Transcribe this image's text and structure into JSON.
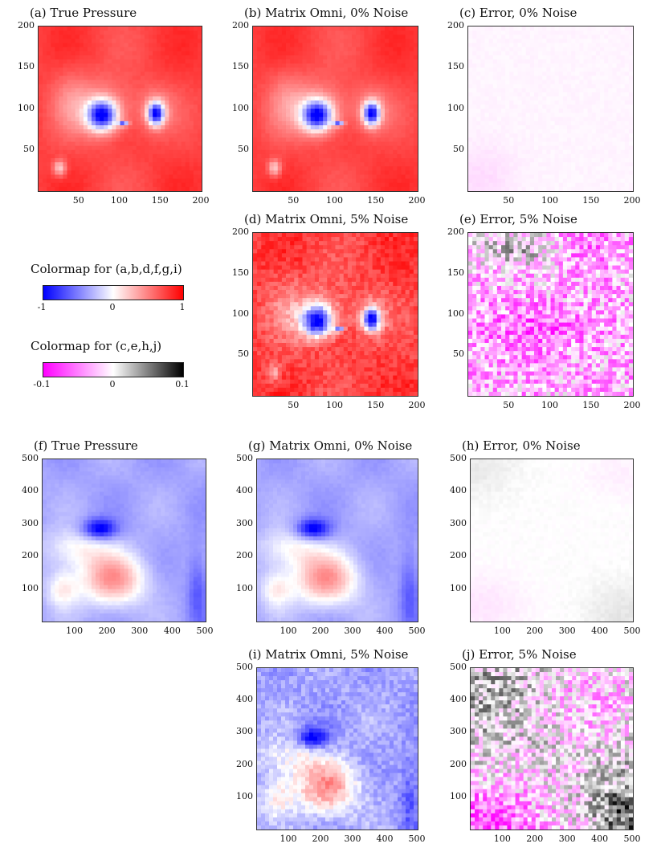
{
  "colorbars": {
    "main": {
      "label": "Colormap for (a,b,d,f,g,i)",
      "ticks": [
        "-1",
        "0",
        "1"
      ],
      "colors": [
        "#0000ff",
        "#ffffff",
        "#ff0000"
      ]
    },
    "error": {
      "label": "Colormap for (c,e,h,j)",
      "ticks": [
        "-0.1",
        "0",
        "0.1"
      ],
      "colors": [
        "#ff00ff",
        "#ffffff",
        "#000000"
      ]
    }
  },
  "chart_data": [
    {
      "id": "a",
      "type": "heatmap",
      "title": "(a) True Pressure",
      "xticks": [
        "50",
        "100",
        "150",
        "200"
      ],
      "yticks": [
        "200",
        "150",
        "100",
        "50"
      ],
      "xlim": [
        0,
        200
      ],
      "ylim": [
        0,
        200
      ],
      "colormap": "main",
      "pattern": "pressure200",
      "noise": 0,
      "dominant_value": 0.8
    },
    {
      "id": "b",
      "type": "heatmap",
      "title": "(b) Matrix Omni, 0% Noise",
      "xticks": [
        "50",
        "100",
        "150",
        "200"
      ],
      "yticks": [
        "200",
        "150",
        "100",
        "50"
      ],
      "xlim": [
        0,
        200
      ],
      "ylim": [
        0,
        200
      ],
      "colormap": "main",
      "pattern": "pressure200",
      "noise": 0,
      "dominant_value": 0.8
    },
    {
      "id": "c",
      "type": "heatmap",
      "title": "(c) Error, 0% Noise",
      "xticks": [
        "50",
        "100",
        "150",
        "200"
      ],
      "yticks": [
        "200",
        "150",
        "100",
        "50"
      ],
      "xlim": [
        0,
        200
      ],
      "ylim": [
        0,
        200
      ],
      "colormap": "error",
      "pattern": "error200clean",
      "noise": 0,
      "dominant_value": -0.005
    },
    {
      "id": "d",
      "type": "heatmap",
      "title": "(d) Matrix Omni, 5% Noise",
      "xticks": [
        "50",
        "100",
        "150",
        "200"
      ],
      "yticks": [
        "200",
        "150",
        "100",
        "50"
      ],
      "xlim": [
        0,
        200
      ],
      "ylim": [
        0,
        200
      ],
      "colormap": "main",
      "pattern": "pressure200",
      "noise": 0.05,
      "dominant_value": 0.8
    },
    {
      "id": "e",
      "type": "heatmap",
      "title": "(e) Error, 5% Noise",
      "xticks": [
        "50",
        "100",
        "150",
        "200"
      ],
      "yticks": [
        "200",
        "150",
        "100",
        "50"
      ],
      "xlim": [
        0,
        200
      ],
      "ylim": [
        0,
        200
      ],
      "colormap": "error",
      "pattern": "error200noisy",
      "noise": 0.05,
      "dominant_value": -0.05
    },
    {
      "id": "f",
      "type": "heatmap",
      "title": "(f) True Pressure",
      "xticks": [
        "100",
        "200",
        "300",
        "400",
        "500"
      ],
      "yticks": [
        "500",
        "400",
        "300",
        "200",
        "100"
      ],
      "xlim": [
        0,
        500
      ],
      "ylim": [
        0,
        500
      ],
      "colormap": "main",
      "pattern": "pressure500",
      "noise": 0,
      "dominant_value": -0.3
    },
    {
      "id": "g",
      "type": "heatmap",
      "title": "(g) Matrix Omni, 0% Noise",
      "xticks": [
        "100",
        "200",
        "300",
        "400",
        "500"
      ],
      "yticks": [
        "500",
        "400",
        "300",
        "200",
        "100"
      ],
      "xlim": [
        0,
        500
      ],
      "ylim": [
        0,
        500
      ],
      "colormap": "main",
      "pattern": "pressure500",
      "noise": 0,
      "dominant_value": -0.3
    },
    {
      "id": "h",
      "type": "heatmap",
      "title": "(h) Error, 0% Noise",
      "xticks": [
        "100",
        "200",
        "300",
        "400",
        "500"
      ],
      "yticks": [
        "500",
        "400",
        "300",
        "200",
        "100"
      ],
      "xlim": [
        0,
        500
      ],
      "ylim": [
        0,
        500
      ],
      "colormap": "error",
      "pattern": "error500clean",
      "noise": 0,
      "dominant_value": 0.0
    },
    {
      "id": "i",
      "type": "heatmap",
      "title": "(i) Matrix Omni, 5% Noise",
      "xticks": [
        "100",
        "200",
        "300",
        "400",
        "500"
      ],
      "yticks": [
        "500",
        "400",
        "300",
        "200",
        "100"
      ],
      "xlim": [
        0,
        500
      ],
      "ylim": [
        0,
        500
      ],
      "colormap": "main",
      "pattern": "pressure500",
      "noise": 0.05,
      "dominant_value": -0.3
    },
    {
      "id": "j",
      "type": "heatmap",
      "title": "(j) Error, 5% Noise",
      "xticks": [
        "100",
        "200",
        "300",
        "400",
        "500"
      ],
      "yticks": [
        "500",
        "400",
        "300",
        "200",
        "100"
      ],
      "xlim": [
        0,
        500
      ],
      "ylim": [
        0,
        500
      ],
      "colormap": "error",
      "pattern": "error500noisy",
      "noise": 0.05,
      "dominant_value": 0.0
    }
  ]
}
